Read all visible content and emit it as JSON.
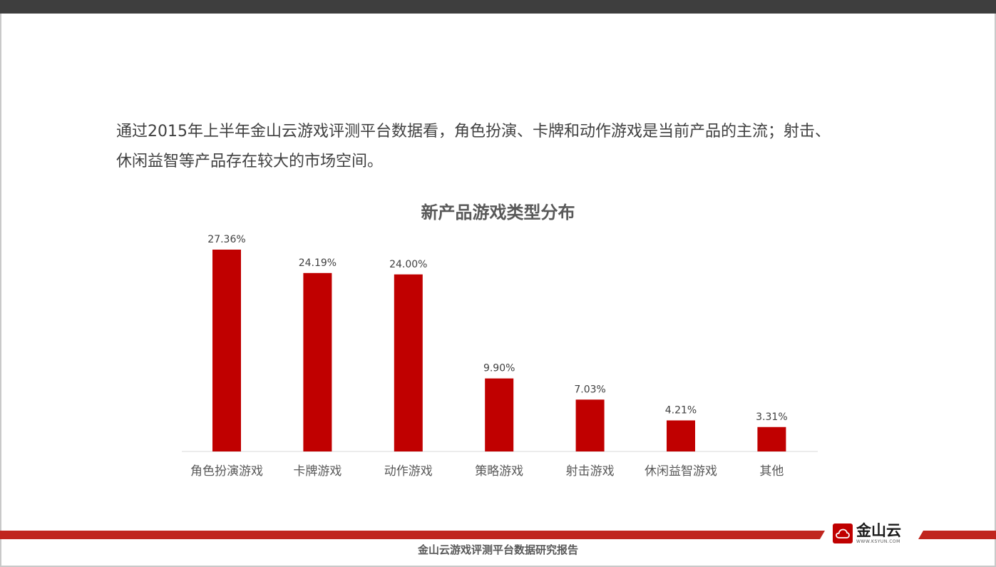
{
  "intro": {
    "line1": "通过2015年上半年金山云游戏评测平台数据看，角色扮演、卡牌和动作游戏是当前产品的主流；射击、",
    "line2": "休闲益智等产品存在较大的市场空间。"
  },
  "chart_data": {
    "type": "bar",
    "title": "新产品游戏类型分布",
    "categories": [
      "角色扮演游戏",
      "卡牌游戏",
      "动作游戏",
      "策略游戏",
      "射击游戏",
      "休闲益智游戏",
      "其他"
    ],
    "values": [
      27.36,
      24.19,
      24.0,
      9.9,
      7.03,
      4.21,
      3.31
    ],
    "value_labels": [
      "27.36%",
      "24.19%",
      "24.00%",
      "9.90%",
      "7.03%",
      "4.21%",
      "3.31%"
    ],
    "xlabel": "",
    "ylabel": "",
    "ylim": [
      0,
      28
    ],
    "bar_color": "#c00000",
    "grid": false,
    "legend": "none"
  },
  "footer": {
    "logo_name": "金山云",
    "logo_url_text": "WWW.KSYUN.COM",
    "report_title": "金山云游戏评测平台数据研究报告",
    "bar_color": "#c0261e"
  },
  "colors": {
    "top_bar": "#3e3e3e",
    "accent": "#c00000"
  }
}
